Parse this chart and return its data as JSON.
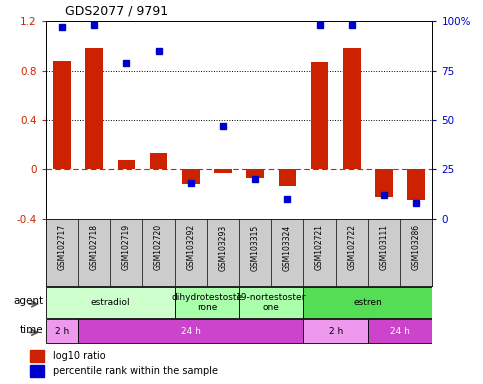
{
  "title": "GDS2077 / 9791",
  "samples": [
    "GSM102717",
    "GSM102718",
    "GSM102719",
    "GSM102720",
    "GSM103292",
    "GSM103293",
    "GSM103315",
    "GSM103324",
    "GSM102721",
    "GSM102722",
    "GSM103111",
    "GSM103286"
  ],
  "log10_ratio": [
    0.88,
    0.98,
    0.08,
    0.13,
    -0.12,
    -0.03,
    -0.07,
    -0.13,
    0.87,
    0.98,
    -0.22,
    -0.25
  ],
  "percentile": [
    97,
    98,
    79,
    85,
    18,
    47,
    20,
    10,
    98,
    98,
    12,
    8
  ],
  "ylim": [
    -0.4,
    1.2
  ],
  "yticks_left": [
    -0.4,
    0.0,
    0.4,
    0.8,
    1.2
  ],
  "yticks_right_labels": [
    "0",
    "25",
    "50",
    "75",
    "100%"
  ],
  "hlines_dotted": [
    0.4,
    0.8
  ],
  "hline_dashdot": 0.0,
  "bar_color": "#cc2200",
  "dot_color": "#0000cc",
  "agent_groups": [
    {
      "label": "estradiol",
      "start": 0,
      "end": 4,
      "color": "#ccffcc"
    },
    {
      "label": "dihydrotestoste\nrone",
      "start": 4,
      "end": 6,
      "color": "#aaffaa"
    },
    {
      "label": "19-nortestoster\none",
      "start": 6,
      "end": 8,
      "color": "#aaffaa"
    },
    {
      "label": "estren",
      "start": 8,
      "end": 12,
      "color": "#55dd55"
    }
  ],
  "time_groups": [
    {
      "label": "2 h",
      "start": 0,
      "end": 1,
      "color": "#ee99ee"
    },
    {
      "label": "24 h",
      "start": 1,
      "end": 8,
      "color": "#cc44cc"
    },
    {
      "label": "2 h",
      "start": 8,
      "end": 10,
      "color": "#ee99ee"
    },
    {
      "label": "24 h",
      "start": 10,
      "end": 12,
      "color": "#cc44cc"
    }
  ],
  "legend_red": "log10 ratio",
  "legend_blue": "percentile rank within the sample",
  "bar_width": 0.55,
  "sample_bg": "#cccccc",
  "fig_bg": "#ffffff"
}
